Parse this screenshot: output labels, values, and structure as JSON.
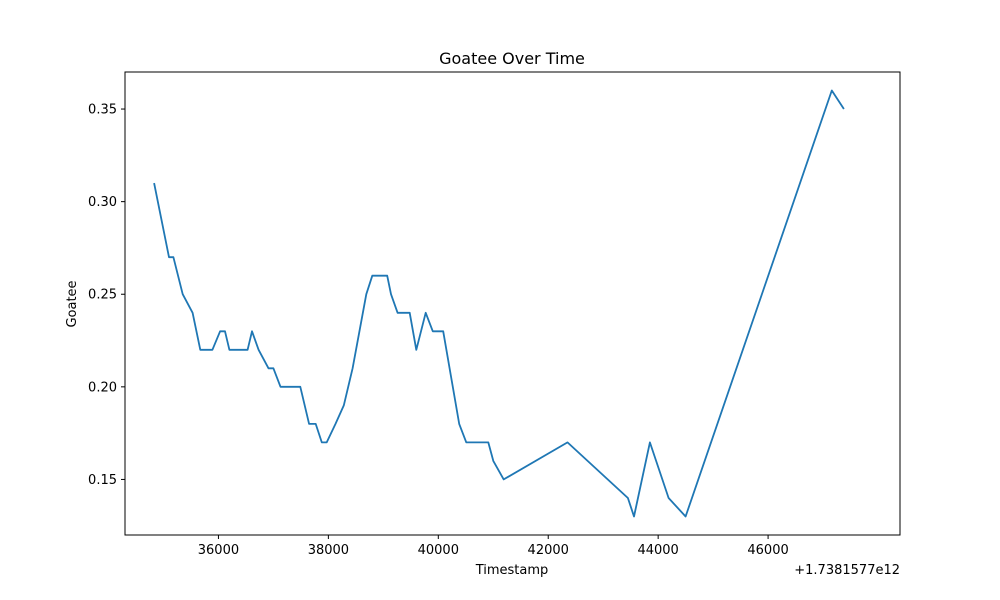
{
  "chart_data": {
    "type": "line",
    "title": "Goatee Over Time",
    "xlabel": "Timestamp",
    "ylabel": "Goatee",
    "x_offset_label": "+1.7381577e12",
    "xlim": [
      34300,
      48400
    ],
    "ylim": [
      0.12,
      0.37
    ],
    "x_ticks": [
      36000,
      38000,
      40000,
      42000,
      44000,
      46000
    ],
    "x_tick_labels": [
      "36000",
      "38000",
      "40000",
      "42000",
      "44000",
      "46000"
    ],
    "y_ticks": [
      0.15,
      0.2,
      0.25,
      0.3,
      0.35
    ],
    "y_tick_labels": [
      "0.15",
      "0.20",
      "0.25",
      "0.30",
      "0.35"
    ],
    "grid": false,
    "legend": "none",
    "series": [
      {
        "color": "#1f77b4",
        "x": [
          34830,
          35100,
          35180,
          35350,
          35530,
          35670,
          35890,
          36030,
          36120,
          36200,
          36350,
          36530,
          36610,
          36730,
          36910,
          37000,
          37130,
          37490,
          37650,
          37770,
          37880,
          37970,
          38130,
          38280,
          38440,
          38690,
          38800,
          38870,
          39070,
          39140,
          39260,
          39480,
          39600,
          39770,
          39900,
          40090,
          40380,
          40510,
          40650,
          40910,
          41000,
          41190,
          42350,
          43450,
          43560,
          43850,
          44190,
          44500,
          47160,
          47380
        ],
        "y": [
          0.31,
          0.27,
          0.27,
          0.25,
          0.24,
          0.22,
          0.22,
          0.23,
          0.23,
          0.22,
          0.22,
          0.22,
          0.23,
          0.22,
          0.21,
          0.21,
          0.2,
          0.2,
          0.18,
          0.18,
          0.17,
          0.17,
          0.18,
          0.19,
          0.21,
          0.25,
          0.26,
          0.26,
          0.26,
          0.25,
          0.24,
          0.24,
          0.22,
          0.24,
          0.23,
          0.23,
          0.18,
          0.17,
          0.17,
          0.17,
          0.16,
          0.15,
          0.17,
          0.14,
          0.13,
          0.17,
          0.14,
          0.13,
          0.36,
          0.35
        ]
      }
    ]
  }
}
